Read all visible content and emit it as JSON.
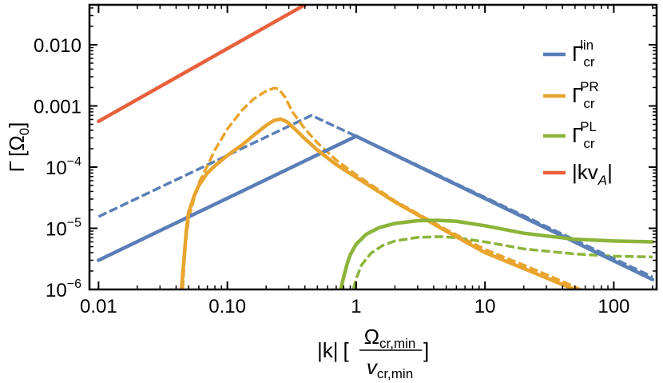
{
  "chart_data": {
    "type": "line",
    "title": "",
    "xlabel": {
      "abs_k": "|k|",
      "bracket_open": "[",
      "numerator": "Ω",
      "numerator_sub": "cr,min",
      "denominator": "v",
      "denominator_sub": "cr,min",
      "bracket_close": "]"
    },
    "ylabel": {
      "gamma": "Γ",
      "bracket_open": "[",
      "omega": "Ω",
      "omega_sub": "0",
      "bracket_close": "]"
    },
    "x_scale": "log",
    "y_scale": "log",
    "xlim": [
      0.0085,
      215
    ],
    "ylim": [
      1e-06,
      0.045
    ],
    "x_ticks": [
      {
        "value": 0.01,
        "label": "0.01"
      },
      {
        "value": 0.1,
        "label": "0.10"
      },
      {
        "value": 1,
        "label": "1"
      },
      {
        "value": 10,
        "label": "10"
      },
      {
        "value": 100,
        "label": "100"
      }
    ],
    "y_ticks": [
      {
        "value": 1e-06,
        "base": "10",
        "exp": "−6",
        "label": ""
      },
      {
        "value": 1e-05,
        "base": "10",
        "exp": "−5",
        "label": ""
      },
      {
        "value": 0.0001,
        "base": "10",
        "exp": "−4",
        "label": ""
      },
      {
        "value": 0.001,
        "base": "",
        "exp": "",
        "label": "0.001"
      },
      {
        "value": 0.01,
        "base": "",
        "exp": "",
        "label": "0.010"
      }
    ],
    "legend_position": "right",
    "series": [
      {
        "name": "Γ_cr^lin",
        "symbol": "Γ",
        "sup": "lin",
        "sub": "cr",
        "color": "#5a7fb6",
        "style": "solid",
        "x": [
          0.01,
          1,
          200
        ],
        "y": [
          3e-06,
          0.00032,
          1.45e-06
        ]
      },
      {
        "name": "Γ_cr^lin (dashed)",
        "symbol": "",
        "sup": "",
        "sub": "",
        "color": "#5a7fb6",
        "style": "dashed",
        "in_legend": false,
        "x": [
          0.01,
          0.45,
          1,
          10,
          100,
          200
        ],
        "y": [
          1.55e-05,
          0.0007,
          0.00032,
          3.2e-05,
          3.2e-06,
          1.6e-06
        ]
      },
      {
        "name": "Γ_cr^PR",
        "symbol": "Γ",
        "sup": "PR",
        "sub": "cr",
        "color": "#e8a42d",
        "style": "solid",
        "x": [
          0.044,
          0.046,
          0.048,
          0.05,
          0.055,
          0.06,
          0.07,
          0.08,
          0.1,
          0.13,
          0.16,
          0.2,
          0.23,
          0.26,
          0.29,
          0.33,
          0.4,
          0.5,
          0.7,
          1,
          2,
          5,
          10,
          20,
          40,
          50
        ],
        "y": [
          1e-06,
          3e-06,
          9e-06,
          1.8e-05,
          3.3e-05,
          5e-05,
          8e-05,
          0.000105,
          0.000155,
          0.00023,
          0.00033,
          0.00048,
          0.00058,
          0.00061,
          0.00055,
          0.00043,
          0.00029,
          0.00019,
          0.00011,
          6.8e-05,
          2.7e-05,
          9e-06,
          4e-06,
          2.2e-06,
          1.2e-06,
          1e-06
        ]
      },
      {
        "name": "Γ_cr^PR (dashed)",
        "symbol": "",
        "sup": "",
        "sub": "",
        "color": "#e8a42d",
        "style": "dashed",
        "in_legend": false,
        "x": [
          0.045,
          0.047,
          0.05,
          0.055,
          0.06,
          0.07,
          0.08,
          0.1,
          0.13,
          0.16,
          0.2,
          0.23,
          0.25,
          0.28,
          0.32,
          0.4,
          0.5,
          0.7,
          1,
          2,
          5,
          10,
          20,
          40,
          55
        ],
        "y": [
          1e-06,
          5e-06,
          1.4e-05,
          3e-05,
          5.5e-05,
          0.000105,
          0.00019,
          0.00042,
          0.00085,
          0.0013,
          0.00175,
          0.00195,
          0.0019,
          0.0014,
          0.0008,
          0.00042,
          0.00025,
          0.00013,
          7.5e-05,
          2.8e-05,
          9.5e-06,
          4.5e-06,
          2.5e-06,
          1.35e-06,
          1e-06
        ]
      },
      {
        "name": "Γ_cr^PL",
        "symbol": "Γ",
        "sup": "PL",
        "sub": "cr",
        "color": "#8cb43a",
        "style": "solid",
        "x": [
          0.76,
          0.8,
          0.85,
          0.9,
          1,
          1.2,
          1.5,
          2,
          3,
          4.2,
          6,
          10,
          20,
          50,
          100,
          200
        ],
        "y": [
          1e-06,
          1.6e-06,
          2.6e-06,
          3.7e-06,
          5.5e-06,
          8e-06,
          1.02e-05,
          1.2e-05,
          1.33e-05,
          1.35e-05,
          1.3e-05,
          1.1e-05,
          8.3e-06,
          6.6e-06,
          6.2e-06,
          6e-06
        ]
      },
      {
        "name": "Γ_cr^PL (dashed)",
        "symbol": "",
        "sup": "",
        "sub": "",
        "color": "#8cb43a",
        "style": "dashed",
        "in_legend": false,
        "x": [
          0.95,
          1,
          1.1,
          1.3,
          1.6,
          2,
          3,
          4.5,
          6,
          10,
          20,
          50,
          100,
          200
        ],
        "y": [
          1e-06,
          1.5e-06,
          2.5e-06,
          3.9e-06,
          5.2e-06,
          6.2e-06,
          7.1e-06,
          7.3e-06,
          7e-06,
          6e-06,
          4.6e-06,
          3.8e-06,
          3.5e-06,
          3.4e-06
        ]
      },
      {
        "name": "|kv_A|",
        "symbol": "|kv",
        "sup": "",
        "sub": "A",
        "suffix": "|",
        "color": "#e8603c",
        "style": "solid",
        "x": [
          0.01,
          0.4
        ],
        "y": [
          0.00056,
          0.045
        ]
      }
    ]
  }
}
